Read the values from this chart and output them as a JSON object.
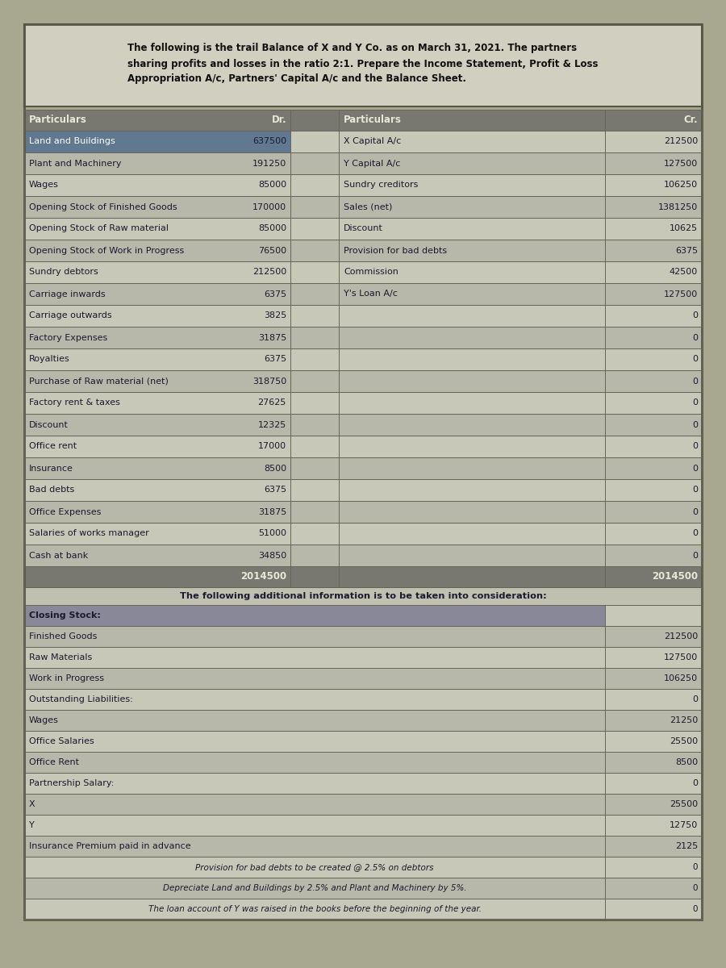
{
  "wrapped_title": "The following is the trail Balance of X and Y Co. as on March 31, 2021. The partners\nsharing profits and losses in the ratio 2:1. Prepare the Income Statement, Profit & Loss\nAppropriation A/c, Partners' Capital A/c and the Balance Sheet.",
  "col_headers": [
    "Particulars",
    "Dr.",
    "Particulars",
    "Cr."
  ],
  "rows": [
    {
      "left": "Land and Buildings",
      "dr": "637500",
      "right": "X Capital A/c",
      "cr": "212500",
      "left_highlight": true
    },
    {
      "left": "Plant and Machinery",
      "dr": "191250",
      "right": "Y Capital A/c",
      "cr": "127500",
      "left_highlight": false
    },
    {
      "left": "Wages",
      "dr": "85000",
      "right": "Sundry creditors",
      "cr": "106250",
      "left_highlight": false
    },
    {
      "left": "Opening Stock of Finished Goods",
      "dr": "170000",
      "right": "Sales (net)",
      "cr": "1381250",
      "left_highlight": false
    },
    {
      "left": "Opening Stock of Raw material",
      "dr": "85000",
      "right": "Discount",
      "cr": "10625",
      "left_highlight": false
    },
    {
      "left": "Opening Stock of Work in Progress",
      "dr": "76500",
      "right": "Provision for bad debts",
      "cr": "6375",
      "left_highlight": false
    },
    {
      "left": "Sundry debtors",
      "dr": "212500",
      "right": "Commission",
      "cr": "42500",
      "left_highlight": false
    },
    {
      "left": "Carriage inwards",
      "dr": "6375",
      "right": "Y's Loan A/c",
      "cr": "127500",
      "left_highlight": false
    },
    {
      "left": "Carriage outwards",
      "dr": "3825",
      "right": "",
      "cr": "0",
      "left_highlight": false
    },
    {
      "left": "Factory Expenses",
      "dr": "31875",
      "right": "",
      "cr": "0",
      "left_highlight": false
    },
    {
      "left": "Royalties",
      "dr": "6375",
      "right": "",
      "cr": "0",
      "left_highlight": false
    },
    {
      "left": "Purchase of Raw material (net)",
      "dr": "318750",
      "right": "",
      "cr": "0",
      "left_highlight": false
    },
    {
      "left": "Factory rent & taxes",
      "dr": "27625",
      "right": "",
      "cr": "0",
      "left_highlight": false
    },
    {
      "left": "Discount",
      "dr": "12325",
      "right": "",
      "cr": "0",
      "left_highlight": false
    },
    {
      "left": "Office rent",
      "dr": "17000",
      "right": "",
      "cr": "0",
      "left_highlight": false
    },
    {
      "left": "Insurance",
      "dr": "8500",
      "right": "",
      "cr": "0",
      "left_highlight": false
    },
    {
      "left": "Bad debts",
      "dr": "6375",
      "right": "",
      "cr": "0",
      "left_highlight": false
    },
    {
      "left": "Office Expenses",
      "dr": "31875",
      "right": "",
      "cr": "0",
      "left_highlight": false
    },
    {
      "left": "Salaries of works manager",
      "dr": "51000",
      "right": "",
      "cr": "0",
      "left_highlight": false
    },
    {
      "left": "Cash at bank",
      "dr": "34850",
      "right": "",
      "cr": "0",
      "left_highlight": false
    }
  ],
  "total_row": {
    "dr": "2014500",
    "cr": "2014500"
  },
  "additional_info_text": "The following additional information is to be taken into consideration:",
  "additional_rows": [
    {
      "left": "Closing Stock:",
      "cr": "",
      "bold": true,
      "highlight": true,
      "italic": false,
      "centered": false
    },
    {
      "left": "Finished Goods",
      "cr": "212500",
      "bold": false,
      "highlight": false,
      "italic": false,
      "centered": false
    },
    {
      "left": "Raw Materials",
      "cr": "127500",
      "bold": false,
      "highlight": false,
      "italic": false,
      "centered": false
    },
    {
      "left": "Work in Progress",
      "cr": "106250",
      "bold": false,
      "highlight": false,
      "italic": false,
      "centered": false
    },
    {
      "left": "Outstanding Liabilities:",
      "cr": "0",
      "bold": false,
      "highlight": false,
      "italic": false,
      "centered": false
    },
    {
      "left": "Wages",
      "cr": "21250",
      "bold": false,
      "highlight": false,
      "italic": false,
      "centered": false
    },
    {
      "left": "Office Salaries",
      "cr": "25500",
      "bold": false,
      "highlight": false,
      "italic": false,
      "centered": false
    },
    {
      "left": "Office Rent",
      "cr": "8500",
      "bold": false,
      "highlight": false,
      "italic": false,
      "centered": false
    },
    {
      "left": "Partnership Salary:",
      "cr": "0",
      "bold": false,
      "highlight": false,
      "italic": false,
      "centered": false
    },
    {
      "left": "X",
      "cr": "25500",
      "bold": false,
      "highlight": false,
      "italic": false,
      "centered": false
    },
    {
      "left": "Y",
      "cr": "12750",
      "bold": false,
      "highlight": false,
      "italic": false,
      "centered": false
    },
    {
      "left": "Insurance Premium paid in advance",
      "cr": "2125",
      "bold": false,
      "highlight": false,
      "italic": false,
      "centered": false
    },
    {
      "left": "Provision for bad debts to be created @ 2.5% on debtors",
      "cr": "0",
      "bold": false,
      "highlight": false,
      "italic": true,
      "centered": true
    },
    {
      "left": "Depreciate Land and Buildings by 2.5% and Plant and Machinery by 5%.",
      "cr": "0",
      "bold": false,
      "highlight": false,
      "italic": true,
      "centered": true
    },
    {
      "left": "The loan account of Y was raised in the books before the beginning of the year.",
      "cr": "0",
      "bold": false,
      "highlight": false,
      "italic": true,
      "centered": true
    }
  ],
  "outer_bg": "#a8a890",
  "title_bg": "#d0cfc0",
  "title_border": "#555544",
  "header_bg": "#787870",
  "header_fg": "#e8e8d8",
  "row_bg_a": "#c8c8b8",
  "row_bg_b": "#b8b8aa",
  "highlight_bg": "#607890",
  "highlight_fg": "#ffffff",
  "total_bg": "#787870",
  "total_fg": "#e8e8d8",
  "info_bg": "#c0c0b0",
  "add_row_bg_a": "#c8c8b8",
  "add_row_bg_b": "#b8b8aa",
  "closing_stock_bg": "#888898",
  "grid_color": "#666658",
  "text_color": "#1a1a30",
  "note_text_color": "#2a2a3a"
}
